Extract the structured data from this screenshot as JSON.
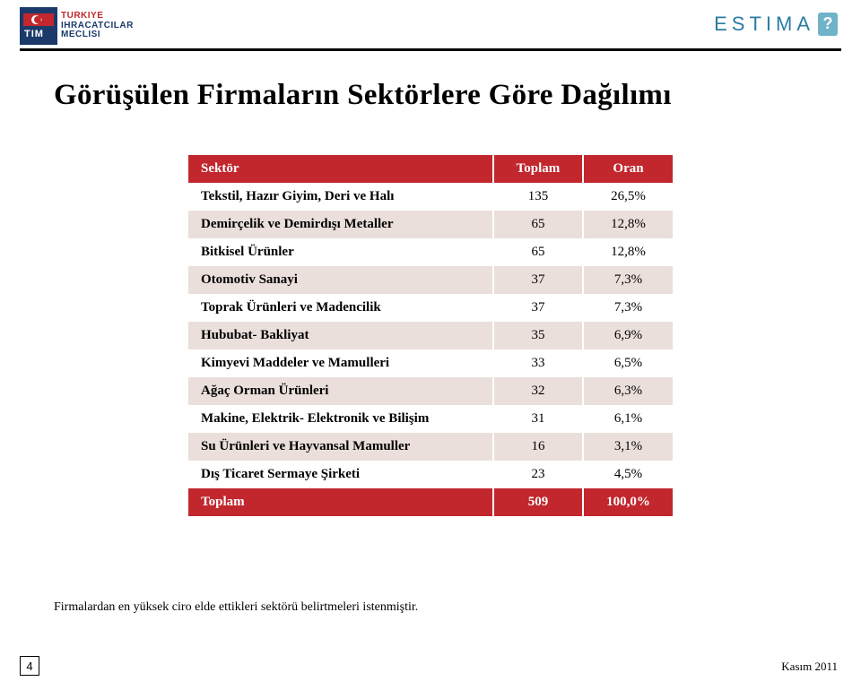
{
  "brand_left": {
    "line1": "TURKIYE",
    "line2": "IHRACATCILAR",
    "line3": "MECLISI"
  },
  "brand_right": "ESTIMA",
  "title": "Görüşülen Firmaların Sektörlere Göre Dağılımı",
  "table": {
    "columns": [
      "Sektör",
      "Toplam",
      "Oran"
    ],
    "rows": [
      [
        "Tekstil, Hazır Giyim, Deri ve Halı",
        "135",
        "26,5%"
      ],
      [
        "Demirçelik ve Demirdışı Metaller",
        "65",
        "12,8%"
      ],
      [
        "Bitkisel Ürünler",
        "65",
        "12,8%"
      ],
      [
        "Otomotiv Sanayi",
        "37",
        "7,3%"
      ],
      [
        "Toprak Ürünleri ve Madencilik",
        "37",
        "7,3%"
      ],
      [
        "Hububat- Bakliyat",
        "35",
        "6,9%"
      ],
      [
        "Kimyevi Maddeler ve Mamulleri",
        "33",
        "6,5%"
      ],
      [
        "Ağaç Orman Ürünleri",
        "32",
        "6,3%"
      ],
      [
        "Makine, Elektrik- Elektronik ve Bilişim",
        "31",
        "6,1%"
      ],
      [
        "Su Ürünleri ve Hayvansal Mamuller",
        "16",
        "3,1%"
      ],
      [
        "Dış Ticaret Sermaye Şirketi",
        "23",
        "4,5%"
      ]
    ],
    "total_row": [
      "Toplam",
      "509",
      "100,0%"
    ],
    "header_bg": "#c1272d",
    "header_fg": "#ffffff",
    "row_alt_bg": "#eadfdb",
    "row_bg": "#ffffff",
    "font_size": 15
  },
  "note": "Firmalardan en yüksek ciro elde ettikleri sektörü belirtmeleri istenmiştir.",
  "page_number": "4",
  "footer_date": "Kasım 2011",
  "colors": {
    "accent_red": "#c1272d",
    "brand_blue": "#1b3a6b",
    "estima_blue": "#2c7ba3",
    "estima_box": "#6fb3c9",
    "rule": "#000000"
  }
}
